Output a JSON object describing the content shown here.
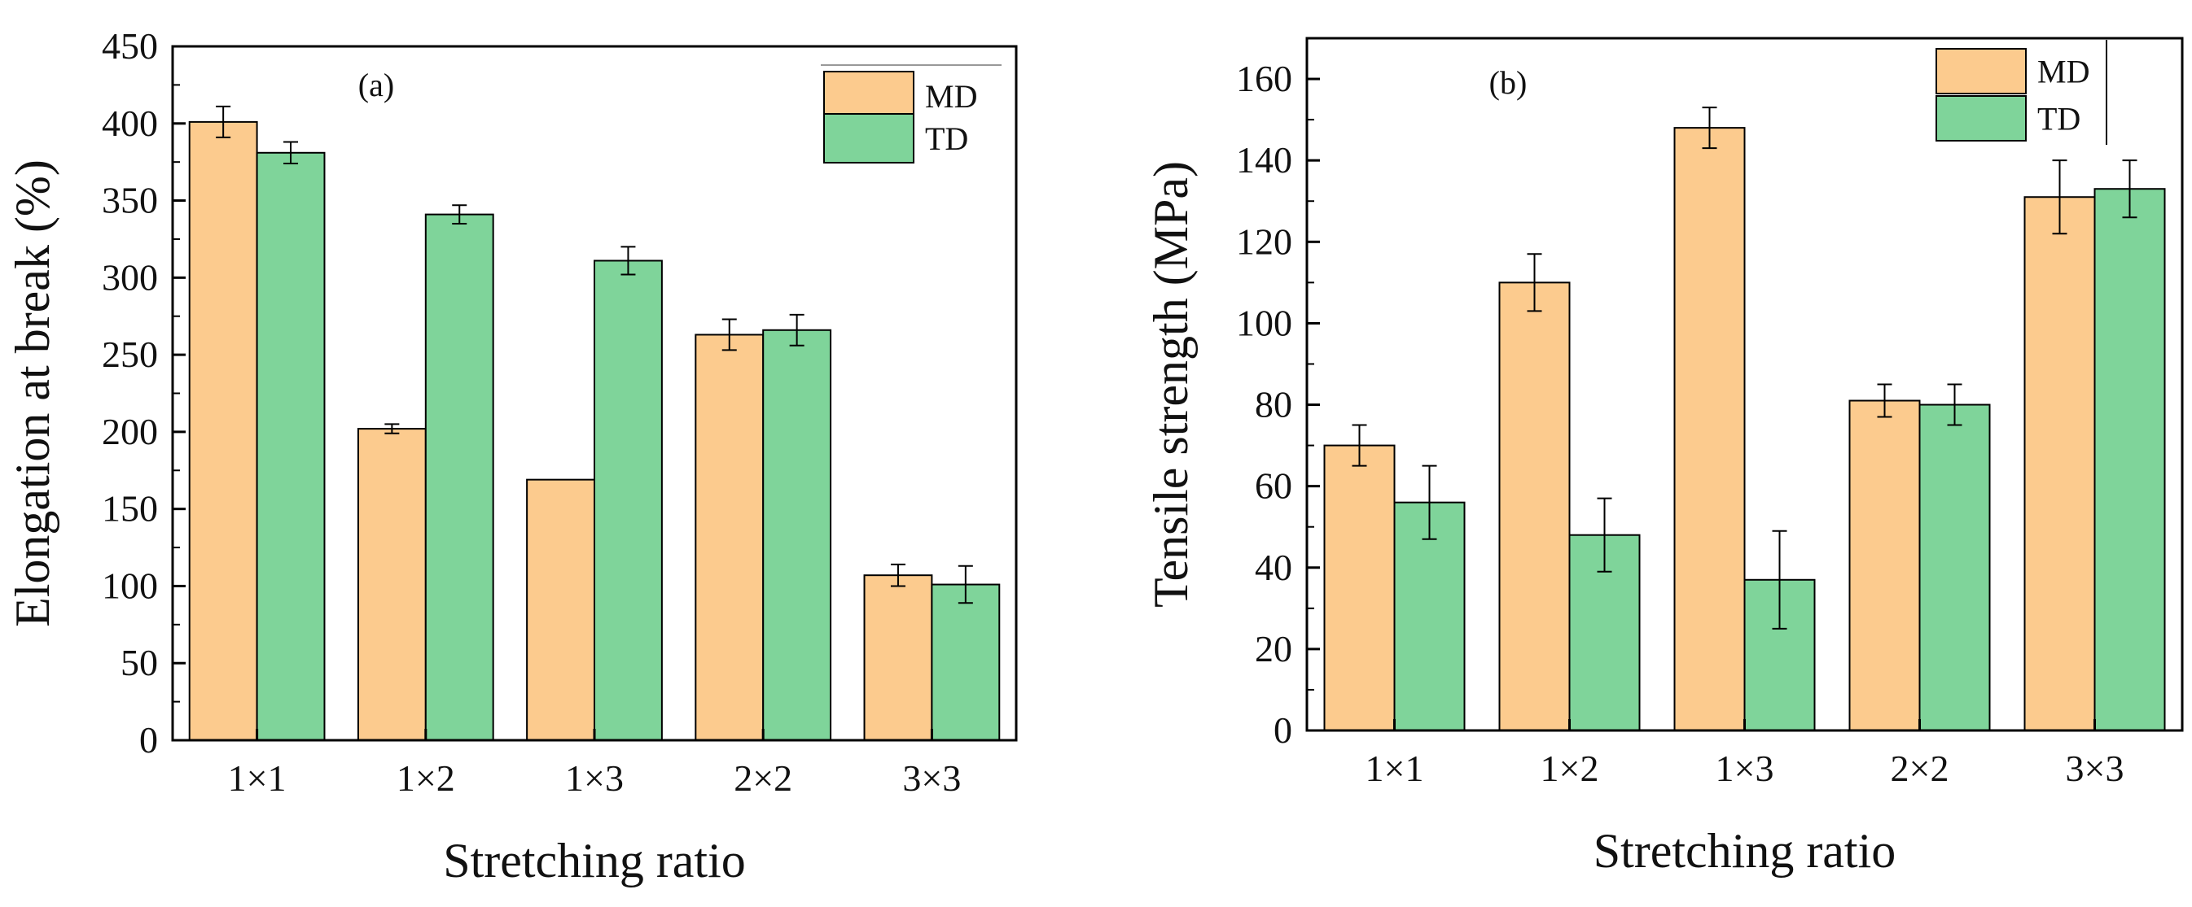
{
  "colors": {
    "md": "#FCCB8E",
    "td": "#7FD49A",
    "axis": "#000000"
  },
  "chart_data": [
    {
      "type": "bar",
      "panel_label": "(a)",
      "categories": [
        "1×1",
        "1×2",
        "1×3",
        "2×2",
        "3×3"
      ],
      "series": [
        {
          "name": "MD",
          "values": [
            401,
            202,
            169,
            263,
            107
          ],
          "errors": [
            10,
            3,
            0,
            10,
            7
          ]
        },
        {
          "name": "TD",
          "values": [
            381,
            341,
            311,
            266,
            101
          ],
          "errors": [
            7,
            6,
            9,
            10,
            12
          ]
        }
      ],
      "ylabel": "Elongation at break (%)",
      "xlabel": "Stretching ratio",
      "ylim": [
        0,
        450
      ],
      "yticks": [
        "0",
        "50",
        "100",
        "150",
        "200",
        "250",
        "300",
        "350",
        "400",
        "450"
      ],
      "legend_position": "top-right"
    },
    {
      "type": "bar",
      "panel_label": "(b)",
      "categories": [
        "1×1",
        "1×2",
        "1×3",
        "2×2",
        "3×3"
      ],
      "series": [
        {
          "name": "MD",
          "values": [
            70,
            110,
            148,
            81,
            131
          ],
          "errors": [
            5,
            7,
            5,
            4,
            9
          ]
        },
        {
          "name": "TD",
          "values": [
            56,
            48,
            37,
            80,
            133
          ],
          "errors": [
            9,
            9,
            12,
            5,
            7
          ]
        }
      ],
      "ylabel": "Tensile strength (MPa)",
      "xlabel": "Stretching ratio",
      "ylim": [
        0,
        170
      ],
      "yticks": [
        "0",
        "20",
        "40",
        "60",
        "80",
        "100",
        "120",
        "140",
        "160"
      ],
      "legend_position": "top-right"
    }
  ]
}
